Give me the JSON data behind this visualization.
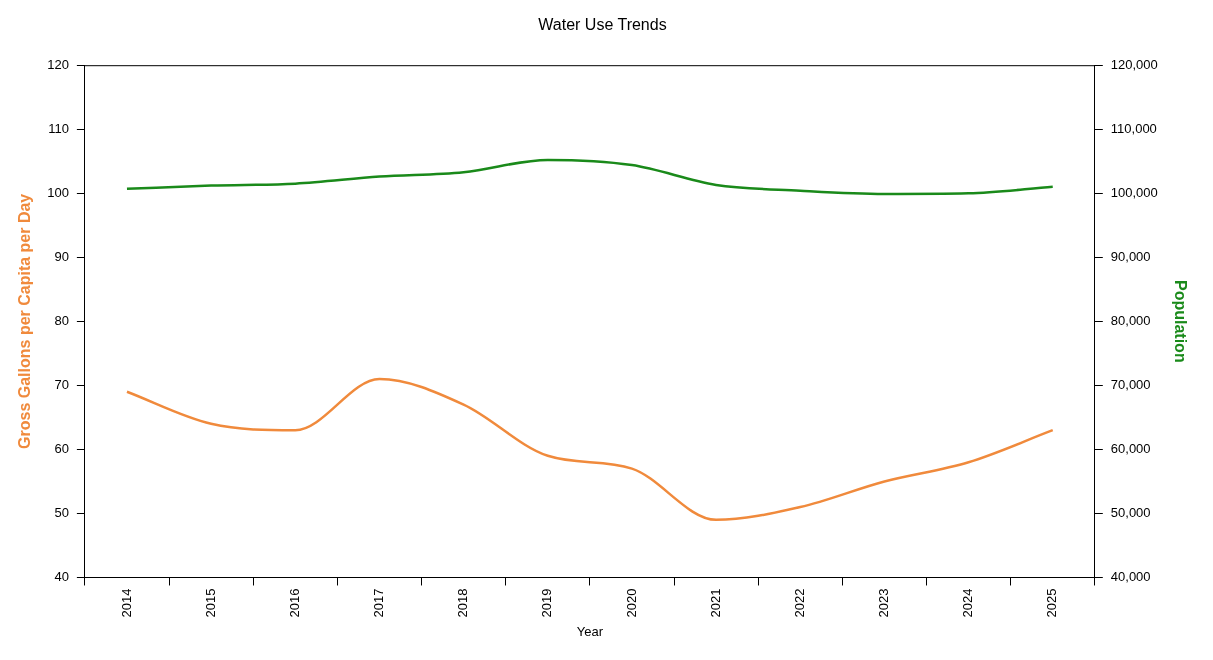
{
  "chart_data": {
    "type": "line",
    "title": "Water Use Trends",
    "xlabel": "Year",
    "ylabel": "Gross Gallons per Capita per Day",
    "y2label": "Population",
    "categories": [
      "2014",
      "2015",
      "2016",
      "2017",
      "2018",
      "2019",
      "2020",
      "2021",
      "2022",
      "2023",
      "2024",
      "2025"
    ],
    "series": [
      {
        "color": "#f08a3c",
        "values": [
          69,
          64,
          63,
          71,
          67,
          59,
          57,
          49,
          51,
          55,
          58,
          63
        ]
      },
      {
        "color": "#1a8a1a",
        "axis": "y2",
        "values": [
          100700,
          101200,
          101500,
          102600,
          103300,
          105200,
          104400,
          101300,
          100400,
          99900,
          100000,
          101000
        ]
      }
    ],
    "ylim": [
      40,
      120
    ],
    "yticks": [
      40,
      50,
      60,
      70,
      80,
      90,
      100,
      110,
      120
    ],
    "y2lim": [
      40000,
      120000
    ],
    "y2ticks": [
      {
        "value": 40000,
        "label": "40,000"
      },
      {
        "value": 50000,
        "label": "50,000"
      },
      {
        "value": 60000,
        "label": "60,000"
      },
      {
        "value": 70000,
        "label": "70,000"
      },
      {
        "value": 80000,
        "label": "80,000"
      },
      {
        "value": 90000,
        "label": "90,000"
      },
      {
        "value": 100000,
        "label": "100,000"
      },
      {
        "value": 110000,
        "label": "110,000"
      },
      {
        "value": 120000,
        "label": "120,000"
      }
    ],
    "grid": false,
    "legend": false,
    "marker": "none",
    "line_style": "solid"
  }
}
